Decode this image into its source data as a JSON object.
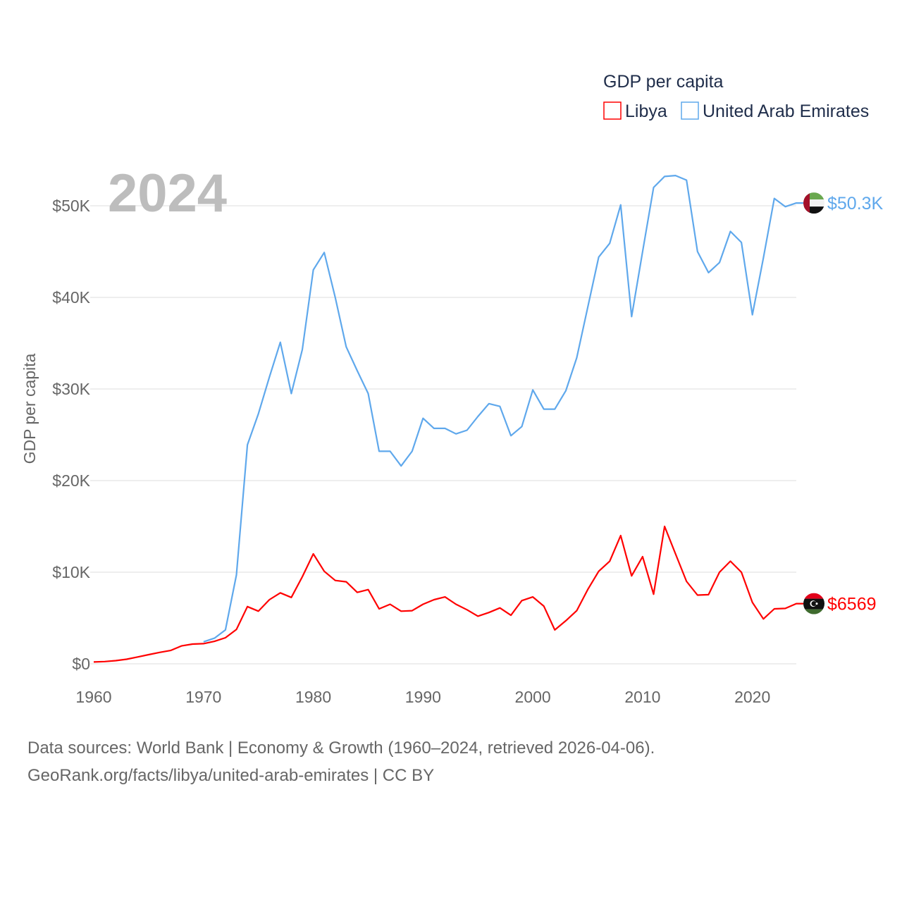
{
  "chart_data": {
    "type": "line",
    "title": "GDP per capita",
    "ylabel": "GDP per capita",
    "xlabel": "",
    "year_label": "2024",
    "xlim": [
      1960,
      2024
    ],
    "ylim": [
      0,
      55000
    ],
    "grid": true,
    "legend_placement": "top-right",
    "x_ticks": [
      1960,
      1970,
      1980,
      1990,
      2000,
      2010,
      2020
    ],
    "x_tick_labels": [
      "1960",
      "1970",
      "1980",
      "1990",
      "2000",
      "2010",
      "2020"
    ],
    "y_ticks": [
      0,
      10000,
      20000,
      30000,
      40000,
      50000
    ],
    "y_tick_labels": [
      "$0",
      "$10K",
      "$20K",
      "$30K",
      "$40K",
      "$50K"
    ],
    "series": [
      {
        "name": "Libya",
        "color": "#ff0000",
        "end_label": "$6569",
        "flag": "libya-flag",
        "start_year": 1960,
        "values": [
          200,
          250,
          350,
          500,
          750,
          1000,
          1250,
          1450,
          1950,
          2150,
          2200,
          2450,
          2850,
          3750,
          6250,
          5750,
          7000,
          7750,
          7250,
          9500,
          12000,
          10100,
          9100,
          8950,
          7800,
          8100,
          6000,
          6500,
          5750,
          5800,
          6500,
          7000,
          7300,
          6500,
          5900,
          5200,
          5600,
          6100,
          5300,
          6900,
          7300,
          6300,
          3700,
          4700,
          5800,
          8100,
          10100,
          11200,
          14000,
          9600,
          11700,
          7600,
          15000,
          12000,
          9000,
          7500,
          7550,
          10000,
          11200,
          10000,
          6700,
          4900,
          6000,
          6050,
          6569
        ]
      },
      {
        "name": "United Arab Emirates",
        "color": "#5fa8ec",
        "end_label": "$50.3K",
        "flag": "uae-flag",
        "start_year": 1970,
        "values": [
          2400,
          2800,
          3700,
          9700,
          23900,
          27300,
          31300,
          35100,
          29500,
          34300,
          43000,
          44900,
          40000,
          34600,
          32000,
          29500,
          23200,
          23200,
          21600,
          23200,
          26800,
          25700,
          25700,
          25100,
          25500,
          27000,
          28400,
          28100,
          24900,
          25900,
          29900,
          27800,
          27800,
          29800,
          33400,
          38900,
          44400,
          45900,
          50100,
          37900,
          45000,
          52000,
          53200,
          53300,
          52800,
          45000,
          42700,
          43800,
          47200,
          46000,
          38100,
          44300,
          50800,
          49900,
          50300
        ]
      }
    ]
  },
  "source": {
    "line1": "Data sources: World Bank | Economy & Growth (1960–2024, retrieved 2026-04-06).",
    "line2": "GeoRank.org/facts/libya/united-arab-emirates | CC BY"
  }
}
